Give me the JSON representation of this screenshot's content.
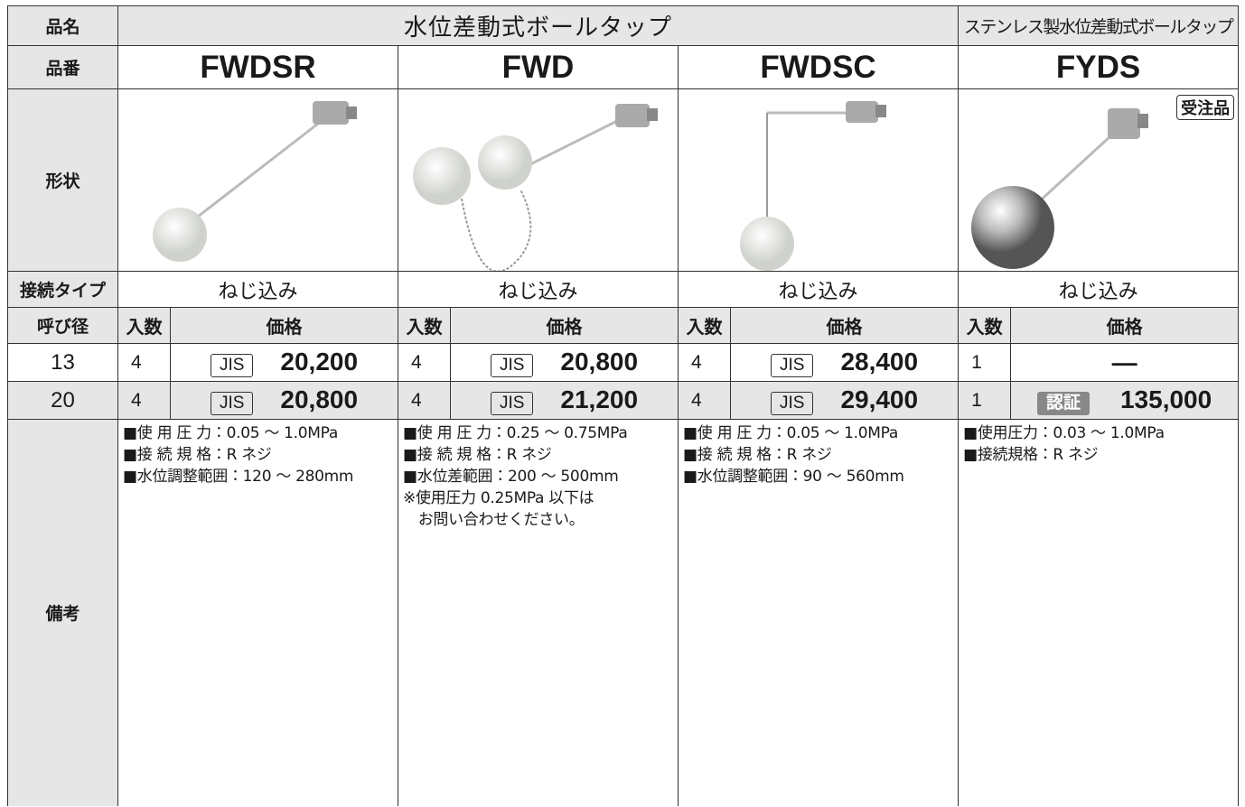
{
  "header_labels": {
    "name": "品名",
    "model": "品番",
    "shape": "形状",
    "connection": "接続タイプ",
    "size": "呼び径",
    "notes": "備考"
  },
  "product_names": [
    "水位差動式ボールタップ",
    "ステンレス製水位差動式ボールタップ"
  ],
  "badge": "受注品",
  "sizes": [
    "13",
    "20"
  ],
  "products": [
    {
      "model": "FWDSR",
      "connection": "ねじ込み",
      "qty_label": "入数",
      "price_label": "価格",
      "rows": [
        {
          "qty": "4",
          "cert": "JIS",
          "price": "20,200"
        },
        {
          "qty": "4",
          "cert": "JIS",
          "price": "20,800"
        }
      ],
      "notes": [
        "■使 用 圧 力：0.05 ～ 1.0MPa",
        "■接 続 規 格：R ネジ",
        "■水位調整範囲：120 ～ 280mm"
      ]
    },
    {
      "model": "FWD",
      "connection": "ねじ込み",
      "qty_label": "入数",
      "price_label": "価格",
      "rows": [
        {
          "qty": "4",
          "cert": "JIS",
          "price": "20,800"
        },
        {
          "qty": "4",
          "cert": "JIS",
          "price": "21,200"
        }
      ],
      "notes": [
        "■使 用 圧 力：0.25 ～ 0.75MPa",
        "■接 続 規 格：R ネジ",
        "■水位差範囲：200 ～ 500mm",
        "※使用圧力 0.25MPa 以下は",
        "　お問い合わせください。"
      ]
    },
    {
      "model": "FWDSC",
      "connection": "ねじ込み",
      "qty_label": "入数",
      "price_label": "価格",
      "rows": [
        {
          "qty": "4",
          "cert": "JIS",
          "price": "28,400"
        },
        {
          "qty": "4",
          "cert": "JIS",
          "price": "29,400"
        }
      ],
      "notes": [
        "■使 用 圧 力：0.05 ～ 1.0MPa",
        "■接 続 規 格：R ネジ",
        "■水位調整範囲：90 ～ 560mm"
      ]
    },
    {
      "model": "FYDS",
      "connection": "ねじ込み",
      "qty_label": "入数",
      "price_label": "価格",
      "rows": [
        {
          "qty": "1",
          "price": "—"
        },
        {
          "qty": "1",
          "cert": "認証",
          "price": "135,000"
        }
      ],
      "notes": [
        "■使用圧力：0.03 ～ 1.0MPa",
        "■接続規格：R ネジ"
      ]
    }
  ]
}
